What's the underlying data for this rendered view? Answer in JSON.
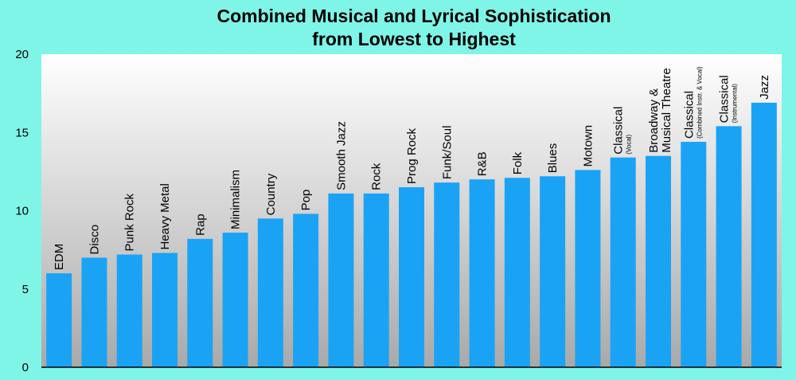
{
  "chart_data": {
    "type": "bar",
    "title": "Combined Musical and Lyrical Sophistication",
    "subtitle": "from Lowest to Highest",
    "xlabel": "",
    "ylabel": "",
    "ylim": [
      0,
      20
    ],
    "yticks": [
      "0",
      "5",
      "10",
      "15",
      "20"
    ],
    "grid": false,
    "legend": "none",
    "categories": [
      {
        "label": "EDM",
        "sub": ""
      },
      {
        "label": "Disco",
        "sub": ""
      },
      {
        "label": "Punk Rock",
        "sub": ""
      },
      {
        "label": "Heavy Metal",
        "sub": ""
      },
      {
        "label": "Rap",
        "sub": ""
      },
      {
        "label": "Minimalism",
        "sub": ""
      },
      {
        "label": "Country",
        "sub": ""
      },
      {
        "label": "Pop",
        "sub": ""
      },
      {
        "label": "Smooth Jazz",
        "sub": ""
      },
      {
        "label": "Rock",
        "sub": ""
      },
      {
        "label": "Prog Rock",
        "sub": ""
      },
      {
        "label": "Funk/Soul",
        "sub": ""
      },
      {
        "label": "R&B",
        "sub": ""
      },
      {
        "label": "Folk",
        "sub": ""
      },
      {
        "label": "Blues",
        "sub": ""
      },
      {
        "label": "Motown",
        "sub": ""
      },
      {
        "label": "Classical",
        "sub": "(Vocal)"
      },
      {
        "label": "Broadway &",
        "sub": "",
        "label2": "Musical Theatre"
      },
      {
        "label": "Classical",
        "sub": "(Combined Instr. & Vocal)"
      },
      {
        "label": "Classical",
        "sub": "(Instrumental)"
      },
      {
        "label": "Jazz",
        "sub": ""
      }
    ],
    "values": [
      6.0,
      7.0,
      7.2,
      7.3,
      8.2,
      8.6,
      9.5,
      9.8,
      11.1,
      11.1,
      11.5,
      11.8,
      12.0,
      12.1,
      12.2,
      12.6,
      13.4,
      13.5,
      14.4,
      15.4,
      16.9
    ],
    "colors": {
      "bar": "#1aa3f5",
      "background": "#7ff5e8",
      "plot_top": "#ffffff",
      "plot_bottom": "#a9a9a9",
      "axis": "#000000"
    }
  }
}
